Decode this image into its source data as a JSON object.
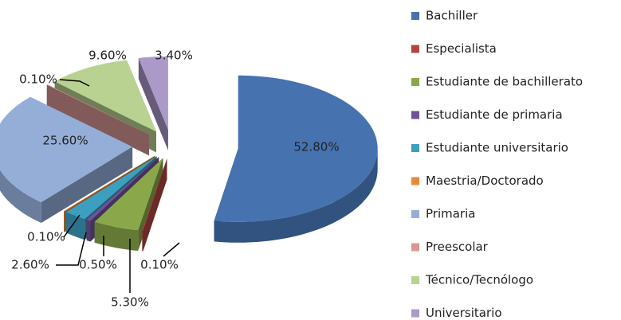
{
  "chart_data": {
    "type": "pie",
    "categories": [
      "Bachiller",
      "Especialista",
      "Estudiante de bachillerato",
      "Estudiante de primaria",
      "Estudiante universitario",
      "Maestria/Doctorado",
      "Primaria",
      "Preescolar",
      "Técnico/Tecnólogo",
      "Universitario"
    ],
    "values": [
      52.8,
      0.1,
      5.3,
      0.5,
      2.6,
      0.1,
      25.6,
      0.1,
      9.6,
      3.4
    ],
    "value_labels": [
      "52.80%",
      "0.10%",
      "5.30%",
      "0.50%",
      "2.60%",
      "0.10%",
      "25.60%",
      "0.10%",
      "9.60%",
      "3.40%"
    ],
    "colors": [
      "#4672b0",
      "#b04643",
      "#8aa84a",
      "#6f539a",
      "#3d9fbf",
      "#e58a36",
      "#95aed8",
      "#d99694",
      "#b9d291",
      "#aa99c9"
    ],
    "legend": "right"
  }
}
